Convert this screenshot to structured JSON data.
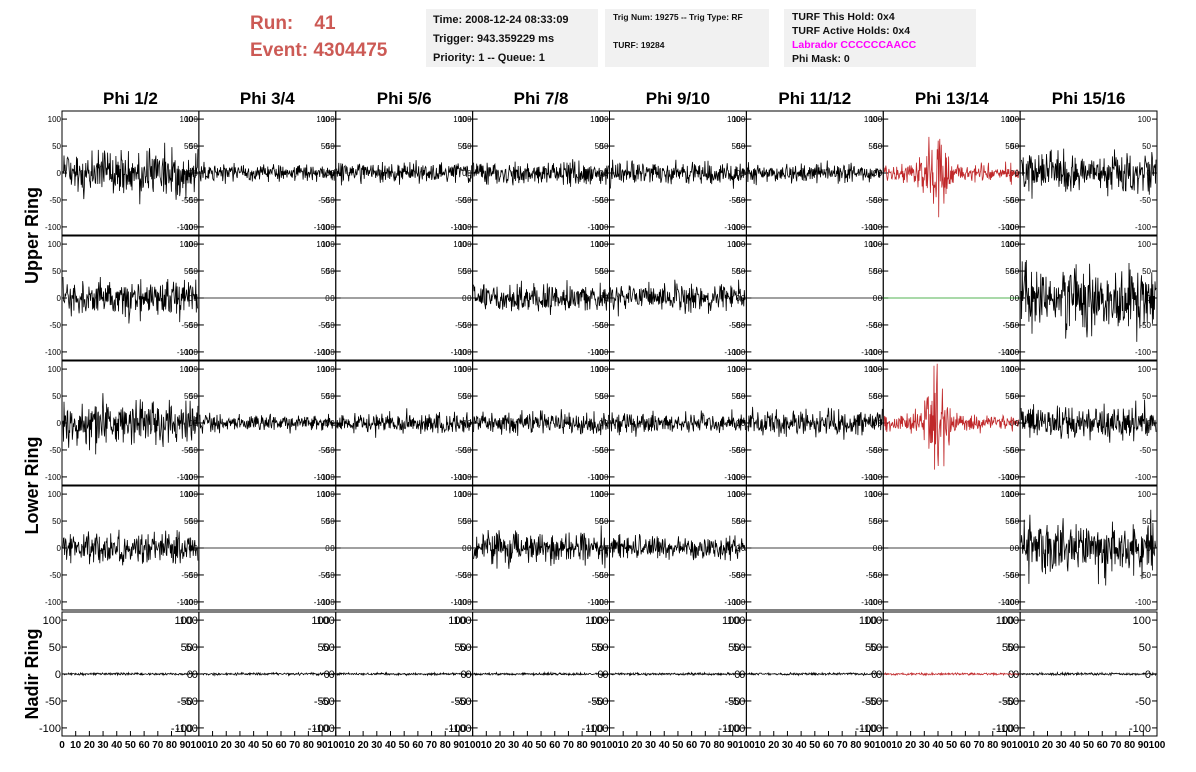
{
  "header": {
    "run_label": "Run:",
    "run_value": "41",
    "event_label": "Event:",
    "event_value": "4304475",
    "time": "Time: 2008-12-24 08:33:09",
    "trigger": "Trigger: 943.359229 ms",
    "priority": "Priority: 1 -- Queue: 1",
    "trig_num": "Trig Num: 19275 -- Trig Type: RF",
    "turf": "TURF: 19284",
    "turf_this_hold": "TURF This Hold: 0x4",
    "turf_active_holds": "TURF Active Holds: 0x4",
    "labrador": "Labrador CCCCCCAACC",
    "phi_mask": "Phi Mask: 0"
  },
  "colors": {
    "trace": "#000000",
    "highlight": "#c0282a",
    "flat_green": "#1a9a1a",
    "run_text": "#cc5a55",
    "labrador": "#ff00ff"
  },
  "chart_data": {
    "type": "line",
    "columns": [
      "Phi 1/2",
      "Phi 3/4",
      "Phi 5/6",
      "Phi 7/8",
      "Phi 9/10",
      "Phi 11/12",
      "Phi 13/14",
      "Phi 15/16"
    ],
    "rings": [
      "Upper Ring",
      "Lower Ring",
      "Nadir Ring"
    ],
    "ylim": [
      -115,
      115
    ],
    "yticks": [
      -100,
      -50,
      0,
      50,
      100
    ],
    "xlim": [
      0,
      100
    ],
    "xticks": [
      0,
      10,
      20,
      30,
      40,
      50,
      60,
      70,
      80,
      90,
      100
    ],
    "rows": [
      {
        "ring": "Upper Ring",
        "amplitudes": [
          40,
          15,
          18,
          20,
          22,
          16,
          25,
          35
        ],
        "styles": [
          "noise",
          "noise",
          "noise",
          "noise",
          "noise",
          "noise",
          "pulse",
          "noise"
        ]
      },
      {
        "ring": "Upper Ring",
        "amplitudes": [
          35,
          0,
          0,
          25,
          25,
          0,
          0,
          55
        ],
        "styles": [
          "noise",
          "flat",
          "flat",
          "noise",
          "noise",
          "flat",
          "flat-green",
          "noise"
        ]
      },
      {
        "ring": "Lower Ring",
        "amplitudes": [
          40,
          15,
          18,
          20,
          18,
          22,
          25,
          30
        ],
        "styles": [
          "noise",
          "noise",
          "noise",
          "noise",
          "noise",
          "noise",
          "pulse",
          "noise"
        ]
      },
      {
        "ring": "Lower Ring",
        "amplitudes": [
          30,
          0,
          0,
          28,
          20,
          0,
          0,
          50
        ],
        "styles": [
          "noise",
          "flat",
          "flat",
          "noise",
          "noise",
          "flat",
          "flat",
          "noise"
        ]
      },
      {
        "ring": "Nadir Ring",
        "amplitudes": [
          2,
          2,
          2,
          2,
          2,
          2,
          2,
          2
        ],
        "styles": [
          "noise",
          "noise",
          "noise",
          "noise",
          "noise",
          "noise",
          "noise-red",
          "noise"
        ]
      }
    ],
    "pulse_peak_x": 38,
    "pulse_peak_amplitude": 100
  }
}
